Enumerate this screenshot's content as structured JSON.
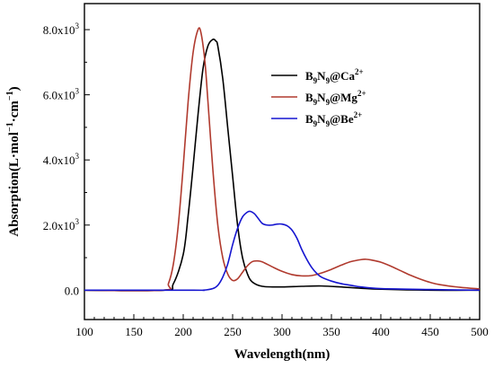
{
  "chart_data": {
    "type": "line",
    "xlabel": "Wavelength(nm)",
    "ylabel": {
      "base": "Absorption(L·mol",
      "sup1": "−1",
      "mid": "·cm",
      "sup2": "−1",
      "end": ")"
    },
    "xlim": [
      100,
      500
    ],
    "ylim": [
      -900,
      8800
    ],
    "x_ticks": [
      100,
      150,
      200,
      250,
      300,
      350,
      400,
      450,
      500
    ],
    "x_tick_labels": [
      "100",
      "150",
      "200",
      "250",
      "300",
      "350",
      "400",
      "450",
      "500"
    ],
    "y_ticks": [
      0,
      2000,
      4000,
      6000,
      8000
    ],
    "y_tick_labels": [
      {
        "value": 0,
        "mantissa": "0.0",
        "exp": ""
      },
      {
        "value": 2000,
        "mantissa": "2.0x10",
        "exp": "3"
      },
      {
        "value": 4000,
        "mantissa": "4.0x10",
        "exp": "3"
      },
      {
        "value": 6000,
        "mantissa": "6.0x10",
        "exp": "3"
      },
      {
        "value": 8000,
        "mantissa": "8.0x10",
        "exp": "3"
      }
    ],
    "grid": false,
    "legend_position": "top-right",
    "series": [
      {
        "legend": {
          "pre": "B",
          "sub1": "9",
          "mid": "N",
          "sub2": "9",
          "post": "@Ca",
          "sup": "2+"
        },
        "color": "#000000",
        "x": [
          100,
          180,
          190,
          200,
          205,
          210,
          215,
          220,
          225,
          230,
          233,
          235,
          240,
          245,
          250,
          255,
          260,
          265,
          270,
          280,
          300,
          320,
          340,
          360,
          380,
          400,
          450,
          500
        ],
        "y": [
          0,
          0,
          200,
          1100,
          2300,
          3800,
          5400,
          6800,
          7500,
          7700,
          7650,
          7500,
          6500,
          5000,
          3500,
          2000,
          1000,
          500,
          250,
          120,
          100,
          120,
          130,
          100,
          60,
          30,
          0,
          0
        ]
      },
      {
        "legend": {
          "pre": "B",
          "sub1": "9",
          "mid": "N",
          "sub2": "9",
          "post": "@Mg",
          "sup": "2+"
        },
        "color": "#b03a2e",
        "x": [
          100,
          180,
          185,
          190,
          195,
          200,
          205,
          210,
          215,
          218,
          222,
          225,
          230,
          235,
          240,
          245,
          250,
          255,
          260,
          265,
          270,
          275,
          280,
          290,
          300,
          310,
          320,
          330,
          340,
          350,
          360,
          370,
          380,
          385,
          390,
          400,
          410,
          420,
          430,
          440,
          450,
          460,
          480,
          500
        ],
        "y": [
          0,
          0,
          200,
          800,
          2000,
          3800,
          5800,
          7300,
          8000,
          7900,
          7000,
          5800,
          3700,
          2000,
          1000,
          500,
          300,
          350,
          550,
          750,
          880,
          900,
          870,
          720,
          580,
          480,
          440,
          450,
          530,
          640,
          770,
          880,
          940,
          950,
          930,
          860,
          740,
          600,
          460,
          340,
          240,
          170,
          90,
          40
        ]
      },
      {
        "legend": {
          "pre": "B",
          "sub1": "9",
          "mid": "N",
          "sub2": "9",
          "post": "@Be",
          "sup": "2+"
        },
        "color": "#1515d0",
        "x": [
          100,
          210,
          220,
          230,
          235,
          240,
          245,
          250,
          255,
          260,
          265,
          268,
          272,
          276,
          280,
          285,
          290,
          295,
          300,
          305,
          310,
          315,
          320,
          325,
          330,
          335,
          340,
          350,
          360,
          370,
          380,
          400,
          450,
          500
        ],
        "y": [
          0,
          0,
          0,
          50,
          150,
          400,
          800,
          1400,
          1900,
          2250,
          2400,
          2420,
          2350,
          2200,
          2050,
          2000,
          2000,
          2030,
          2030,
          1980,
          1850,
          1600,
          1250,
          950,
          700,
          520,
          400,
          280,
          200,
          150,
          100,
          50,
          20,
          0
        ]
      }
    ]
  }
}
